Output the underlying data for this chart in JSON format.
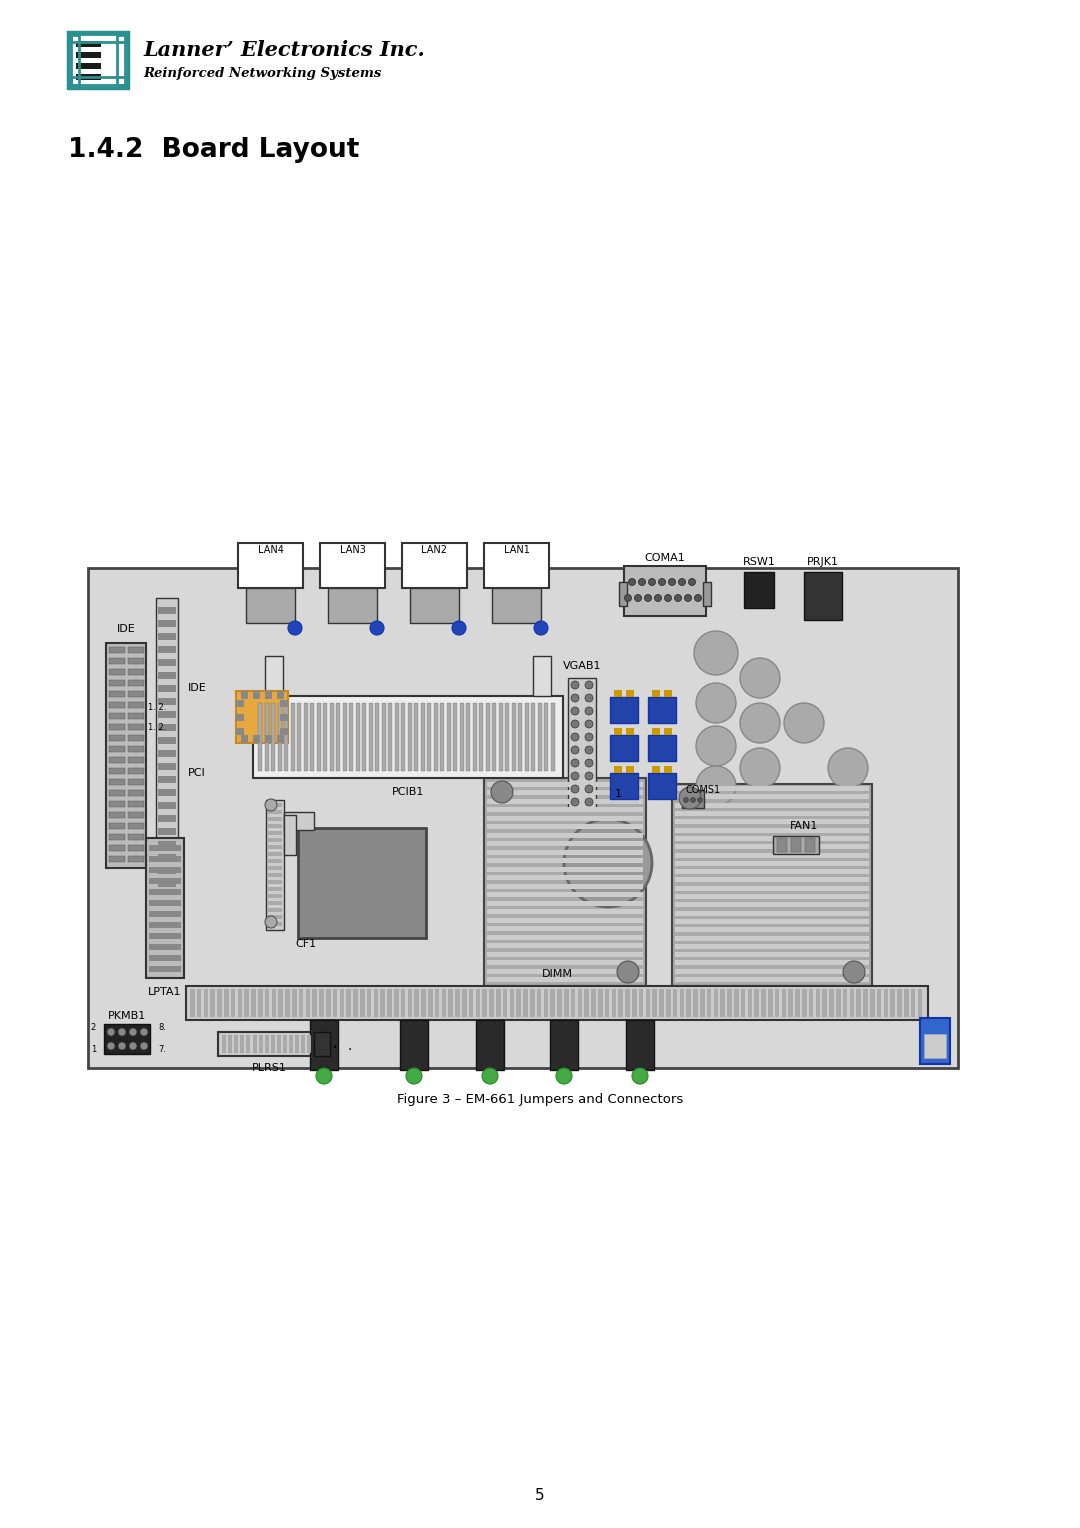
{
  "page_bg": "#ffffff",
  "title": "1.4.2  Board Layout",
  "caption": "Figure 3 – EM-661 Jumpers and Connectors",
  "page_num": "5",
  "company": "Lanner’ Electronics Inc.",
  "subtitle": "Reinforced Networking Systems",
  "logo_teal": "#2a9090",
  "board_fc": "#d8d8d8",
  "board_ec": "#444444",
  "heatsink_fc": "#aaaaaa",
  "heatsink_stripe": "#cccccc",
  "blue_cap": "#2244aa",
  "gray_circ": "#aaaaaa",
  "dark_gray": "#888888",
  "orange_chip": "#e8a840"
}
